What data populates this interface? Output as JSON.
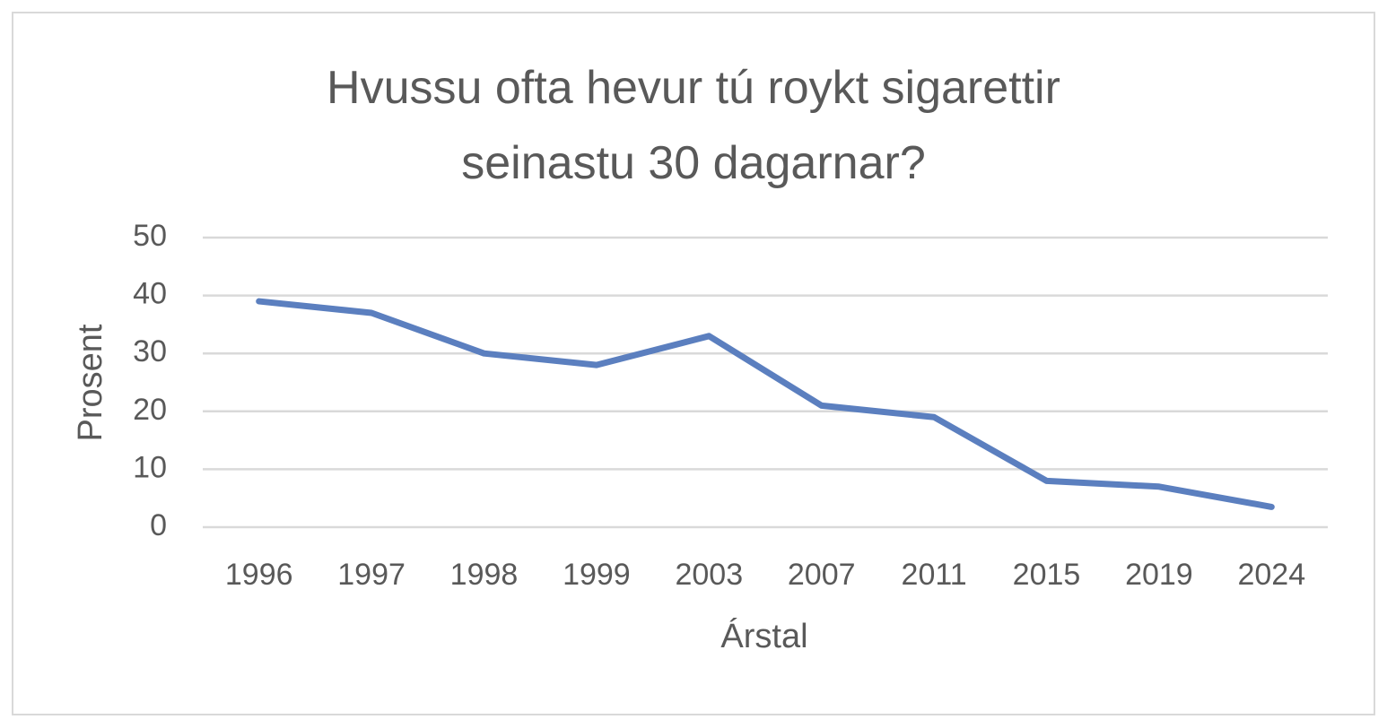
{
  "chart_data": {
    "type": "line",
    "title": "Hvussu ofta hevur tú roykt sigarettir seinastu 30 dagarnar?",
    "x_label": "Árstal",
    "y_label": "Prosent",
    "categories": [
      "1996",
      "1997",
      "1998",
      "1999",
      "2003",
      "2007",
      "2011",
      "2015",
      "2019",
      "2024"
    ],
    "values": [
      39,
      37,
      30,
      28,
      33,
      21,
      19,
      8,
      7,
      3.5
    ],
    "color": "#5b7fbf",
    "ylim": [
      0,
      50
    ],
    "yticks": [
      0,
      10,
      20,
      30,
      40,
      50
    ],
    "grid": true
  }
}
